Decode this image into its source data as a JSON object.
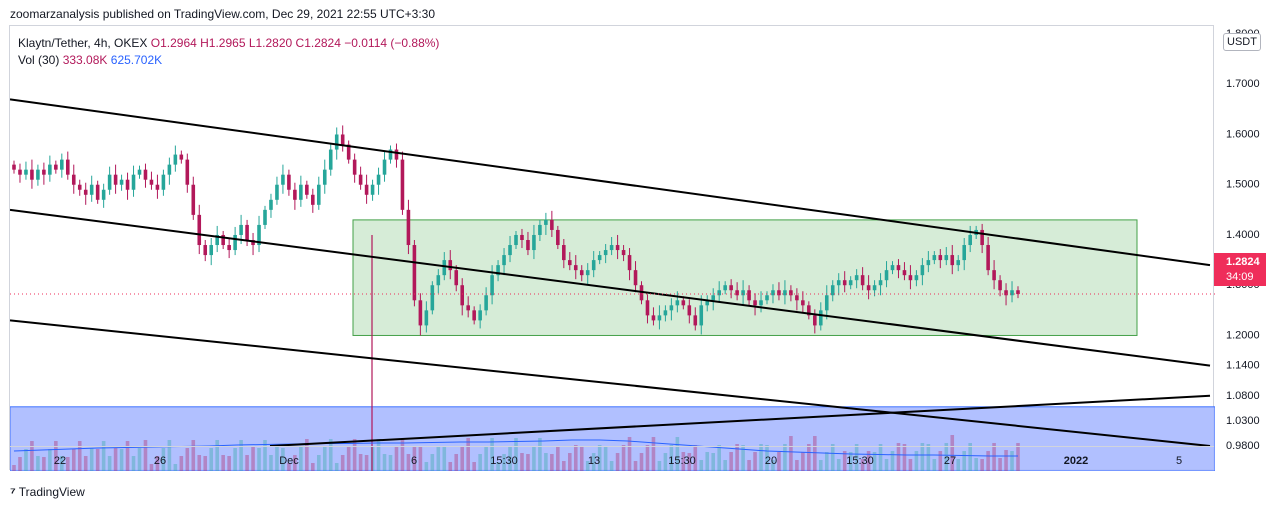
{
  "header": {
    "publisher_line": "zoomarzanalysis published on TradingView.com, Dec 29, 2021 22:55 UTC+3:30"
  },
  "legend": {
    "symbol": "Klaytn/Tether, 4h, OKEX",
    "ohlc": "O1.2964  H1.2965  L1.2820  C1.2824  −0.0114 (−0.88%)",
    "volume_label": "Vol (30)",
    "volume_value": "333.08K",
    "volume_ma": "625.702K"
  },
  "price_scale": {
    "currency_button": "USDT",
    "last_price": "1.2824",
    "countdown": "34:09"
  },
  "footer": {
    "brand": "TradingView"
  },
  "colors": {
    "up": "#26a69a",
    "down": "#b2185a",
    "range_box": "#c8e6c9",
    "volume_zone": "#a9baff",
    "last_price": "#ef2d5a",
    "volume_ma_line": "#2962ff"
  },
  "chart_data": {
    "type": "candlestick",
    "timeframe": "4h",
    "x_tick_labels": [
      "22",
      "26",
      "Dec",
      "6",
      "15:30",
      "13",
      "15:30",
      "20",
      "15:30",
      "27",
      "2022",
      "5"
    ],
    "y_tick_labels": [
      "1.8000",
      "1.7000",
      "1.6000",
      "1.5000",
      "1.4000",
      "1.3000",
      "1.2000",
      "1.1400",
      "1.0800",
      "1.0300",
      "0.9800"
    ],
    "last_price": 1.2824,
    "range_box": {
      "top": 1.43,
      "bottom": 1.2
    },
    "closes_approx": [
      1.53,
      1.52,
      1.53,
      1.51,
      1.53,
      1.52,
      1.54,
      1.53,
      1.55,
      1.52,
      1.5,
      1.49,
      1.48,
      1.5,
      1.47,
      1.49,
      1.52,
      1.5,
      1.51,
      1.49,
      1.52,
      1.53,
      1.51,
      1.5,
      1.49,
      1.52,
      1.54,
      1.56,
      1.55,
      1.5,
      1.44,
      1.38,
      1.36,
      1.38,
      1.4,
      1.38,
      1.37,
      1.4,
      1.42,
      1.39,
      1.38,
      1.42,
      1.45,
      1.47,
      1.5,
      1.52,
      1.49,
      1.47,
      1.5,
      1.48,
      1.46,
      1.5,
      1.53,
      1.57,
      1.6,
      1.58,
      1.55,
      1.52,
      1.5,
      1.48,
      1.5,
      1.52,
      1.55,
      1.57,
      1.55,
      1.45,
      1.38,
      1.27,
      1.22,
      1.25,
      1.3,
      1.32,
      1.35,
      1.33,
      1.3,
      1.26,
      1.25,
      1.23,
      1.25,
      1.28,
      1.32,
      1.34,
      1.36,
      1.38,
      1.4,
      1.39,
      1.37,
      1.4,
      1.42,
      1.43,
      1.41,
      1.38,
      1.35,
      1.34,
      1.33,
      1.32,
      1.33,
      1.35,
      1.36,
      1.37,
      1.38,
      1.37,
      1.36,
      1.33,
      1.3,
      1.27,
      1.24,
      1.23,
      1.24,
      1.25,
      1.26,
      1.27,
      1.26,
      1.24,
      1.22,
      1.26,
      1.27,
      1.28,
      1.29,
      1.3,
      1.29,
      1.28,
      1.29,
      1.27,
      1.26,
      1.27,
      1.28,
      1.29,
      1.28,
      1.29,
      1.28,
      1.27,
      1.26,
      1.24,
      1.22,
      1.25,
      1.28,
      1.3,
      1.31,
      1.3,
      1.31,
      1.32,
      1.3,
      1.29,
      1.3,
      1.31,
      1.33,
      1.34,
      1.33,
      1.32,
      1.31,
      1.32,
      1.34,
      1.35,
      1.36,
      1.35,
      1.36,
      1.34,
      1.35,
      1.38,
      1.4,
      1.41,
      1.38,
      1.33,
      1.31,
      1.29,
      1.28,
      1.29,
      1.2824
    ],
    "volume_ma_approx": [
      40,
      42,
      44,
      46,
      47,
      48,
      49,
      50,
      52,
      53,
      54,
      55,
      55,
      56,
      56,
      57,
      58,
      58,
      59,
      60,
      62,
      62,
      60,
      56,
      52,
      48,
      44,
      40,
      38,
      36,
      34,
      33,
      32,
      32,
      31,
      30,
      30
    ],
    "trendlines": [
      {
        "from": [
          "22",
          1.67
        ],
        "to": [
          "2022",
          1.34
        ]
      },
      {
        "from": [
          "22",
          1.45
        ],
        "to": [
          "2022",
          1.14
        ]
      },
      {
        "from": [
          "22",
          1.23
        ],
        "to": [
          "2022",
          0.98
        ]
      },
      {
        "from": [
          "Dec",
          0.98
        ],
        "to": [
          "2022",
          1.08
        ]
      }
    ]
  }
}
